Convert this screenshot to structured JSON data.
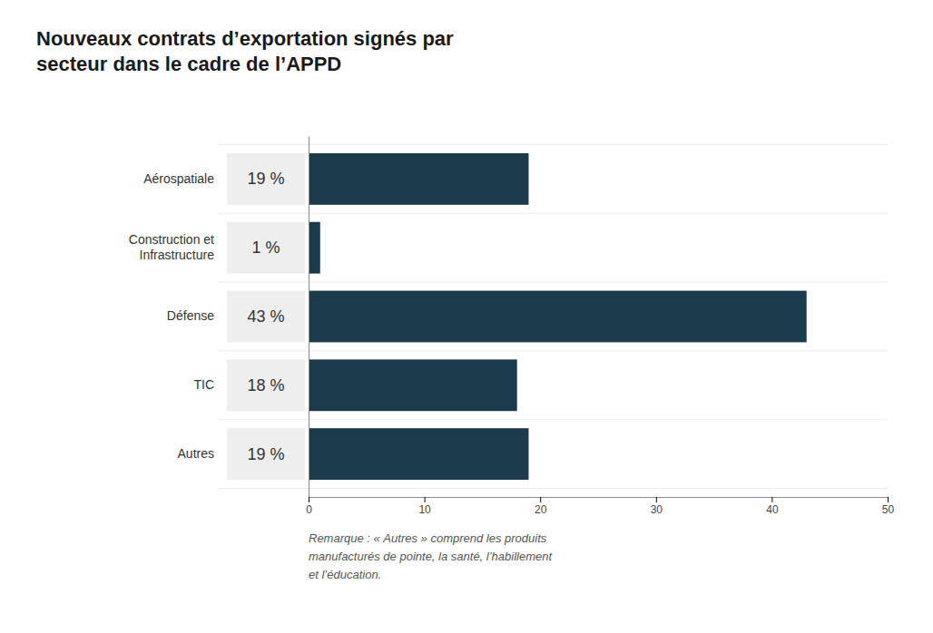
{
  "chart_data": {
    "type": "bar",
    "orientation": "horizontal",
    "title": "Nouveaux contrats d’exportation signés par\nsecteur dans le cadre de l’APPD",
    "categories": [
      "Aérospatiale",
      "Construction et\nInfrastructure",
      "Défense",
      "TIC",
      "Autres"
    ],
    "values": [
      19,
      1,
      43,
      18,
      19
    ],
    "value_labels": [
      "19 %",
      "1 %",
      "43 %",
      "18 %",
      "19 %"
    ],
    "data_labels": true,
    "color": "#1b3a4b",
    "xlim": [
      0,
      50
    ],
    "xticks": [
      0,
      10,
      20,
      30,
      40,
      50
    ],
    "grid": false,
    "annotations": [
      "Remarque : « Autres » comprend les produits\nmanufacturés de pointe, la santé, l’habillement\net l’éducation."
    ]
  }
}
